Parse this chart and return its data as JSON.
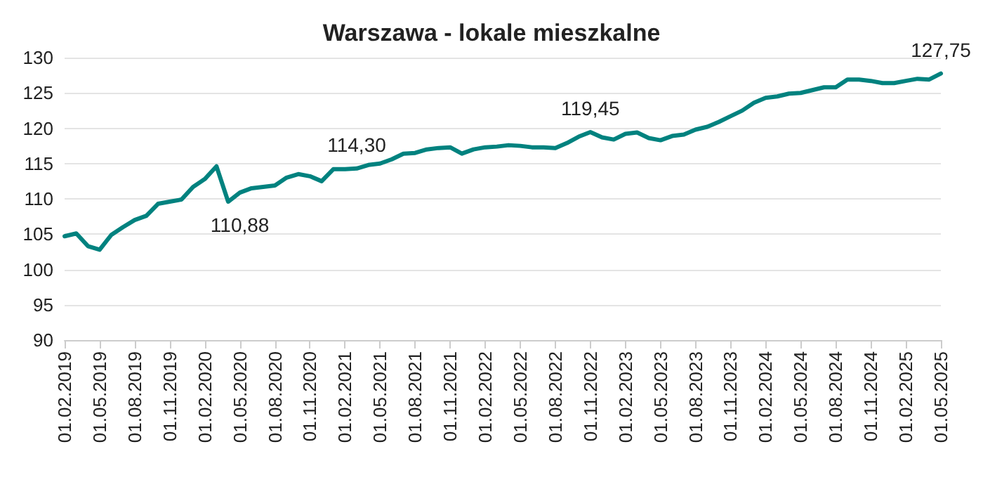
{
  "chart_data": {
    "type": "line",
    "title": "Warszawa - lokale mieszkalne",
    "categories": [
      "01.02.2019",
      null,
      null,
      "01.05.2019",
      null,
      null,
      "01.08.2019",
      null,
      null,
      "01.11.2019",
      null,
      null,
      "01.02.2020",
      null,
      null,
      "01.05.2020",
      null,
      null,
      "01.08.2020",
      null,
      null,
      "01.11.2020",
      null,
      null,
      "01.02.2021",
      null,
      null,
      "01.05.2021",
      null,
      null,
      "01.08.2021",
      null,
      null,
      "01.11.2021",
      null,
      null,
      "01.02.2022",
      null,
      null,
      "01.05.2022",
      null,
      null,
      "01.08.2022",
      null,
      null,
      "01.11.2022",
      null,
      null,
      "01.02.2023",
      null,
      null,
      "01.05.2023",
      null,
      null,
      "01.08.2023",
      null,
      null,
      "01.11.2023",
      null,
      null,
      "01.02.2024",
      null,
      null,
      "01.05.2024",
      null,
      null,
      "01.08.2024",
      null,
      null,
      "01.11.2024",
      null,
      null,
      "01.02.2025",
      null,
      null,
      "01.05.2025"
    ],
    "series": [
      {
        "color": "#00827f",
        "values": [
          104.7,
          105.1,
          103.3,
          102.8,
          104.9,
          106.0,
          107.0,
          107.6,
          109.3,
          109.6,
          109.9,
          111.7,
          112.8,
          114.6,
          109.6,
          110.88,
          111.5,
          111.7,
          111.9,
          113.0,
          113.5,
          113.2,
          112.5,
          114.2,
          114.2,
          114.3,
          114.8,
          115.0,
          115.6,
          116.4,
          116.5,
          117.0,
          117.2,
          117.3,
          116.4,
          117.0,
          117.3,
          117.4,
          117.6,
          117.5,
          117.3,
          117.3,
          117.2,
          117.9,
          118.8,
          119.45,
          118.7,
          118.4,
          119.2,
          119.4,
          118.6,
          118.3,
          118.9,
          119.1,
          119.8,
          120.2,
          120.9,
          121.7,
          122.5,
          123.6,
          124.3,
          124.5,
          124.9,
          125.0,
          125.4,
          125.8,
          125.8,
          126.9,
          126.9,
          126.7,
          126.4,
          126.4,
          126.7,
          127.0,
          126.9,
          127.75
        ],
        "value_labels": [
          null,
          null,
          null,
          null,
          null,
          null,
          null,
          null,
          null,
          null,
          null,
          null,
          null,
          null,
          null,
          "110,88",
          null,
          null,
          null,
          null,
          null,
          null,
          null,
          null,
          null,
          "114,30",
          null,
          null,
          null,
          null,
          null,
          null,
          null,
          null,
          null,
          null,
          null,
          null,
          null,
          null,
          null,
          null,
          null,
          null,
          null,
          "119,45",
          null,
          null,
          null,
          null,
          null,
          null,
          null,
          null,
          null,
          null,
          null,
          null,
          null,
          null,
          null,
          null,
          null,
          null,
          null,
          null,
          null,
          null,
          null,
          null,
          null,
          null,
          null,
          null,
          null,
          "127,75"
        ]
      }
    ],
    "ylim": [
      90,
      130
    ],
    "yticks": [
      90,
      95,
      100,
      105,
      110,
      115,
      120,
      125,
      130
    ],
    "grid": "y",
    "marker": "none",
    "line_style": "solid"
  }
}
